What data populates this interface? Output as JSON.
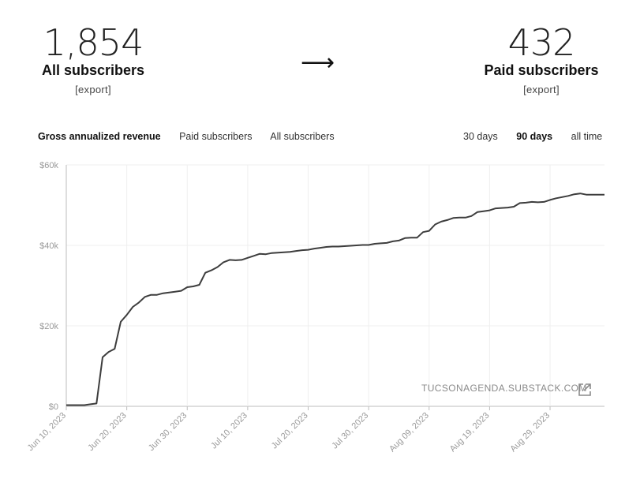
{
  "stats": {
    "all": {
      "number": "1,854",
      "label": "All subscribers",
      "export": "[export]"
    },
    "paid": {
      "number": "432",
      "label": "Paid subscribers",
      "export": "[export]"
    },
    "arrow": "⟶"
  },
  "tabs": {
    "metrics": [
      {
        "label": "Gross annualized revenue",
        "active": true
      },
      {
        "label": "Paid subscribers",
        "active": false
      },
      {
        "label": "All subscribers",
        "active": false
      }
    ],
    "ranges": [
      {
        "label": "30 days",
        "active": false
      },
      {
        "label": "90 days",
        "active": true
      },
      {
        "label": "all time",
        "active": false
      }
    ]
  },
  "watermark": {
    "text": "TUCSONAGENDA.SUBSTACK.COM",
    "icon": "external-link-icon"
  },
  "colors": {
    "line": "#3d3d3d",
    "grid": "#efefef",
    "axis": "#bdbdbd",
    "tick_text": "#9a9a9a"
  },
  "chart_data": {
    "type": "line",
    "title": "",
    "xlabel": "",
    "ylabel": "",
    "ylim": [
      0,
      60000
    ],
    "yticks": [
      0,
      20000,
      40000,
      60000
    ],
    "ytick_labels": [
      "$0",
      "$20k",
      "$40k",
      "$60k"
    ],
    "xlim": [
      "2023-06-10",
      "2023-09-07"
    ],
    "xticks": [
      "2023-06-10",
      "2023-06-20",
      "2023-06-30",
      "2023-07-10",
      "2023-07-20",
      "2023-07-30",
      "2023-08-09",
      "2023-08-19",
      "2023-08-29"
    ],
    "xtick_labels": [
      "Jun 10, 2023",
      "Jun 20, 2023",
      "Jun 30, 2023",
      "Jul 10, 2023",
      "Jul 20, 2023",
      "Jul 30, 2023",
      "Aug 09, 2023",
      "Aug 19, 2023",
      "Aug 29, 2023"
    ],
    "grid": true,
    "series": [
      {
        "x": [
          "2023-06-10",
          "2023-06-11",
          "2023-06-12",
          "2023-06-13",
          "2023-06-14",
          "2023-06-15",
          "2023-06-16",
          "2023-06-17",
          "2023-06-18",
          "2023-06-19",
          "2023-06-20",
          "2023-06-21",
          "2023-06-22",
          "2023-06-23",
          "2023-06-24",
          "2023-06-25",
          "2023-06-26",
          "2023-06-27",
          "2023-06-28",
          "2023-06-29",
          "2023-06-30",
          "2023-07-01",
          "2023-07-02",
          "2023-07-03",
          "2023-07-04",
          "2023-07-05",
          "2023-07-06",
          "2023-07-07",
          "2023-07-08",
          "2023-07-09",
          "2023-07-10",
          "2023-07-11",
          "2023-07-12",
          "2023-07-13",
          "2023-07-14",
          "2023-07-15",
          "2023-07-16",
          "2023-07-17",
          "2023-07-18",
          "2023-07-19",
          "2023-07-20",
          "2023-07-21",
          "2023-07-22",
          "2023-07-23",
          "2023-07-24",
          "2023-07-25",
          "2023-07-26",
          "2023-07-27",
          "2023-07-28",
          "2023-07-29",
          "2023-07-30",
          "2023-07-31",
          "2023-08-01",
          "2023-08-02",
          "2023-08-03",
          "2023-08-04",
          "2023-08-05",
          "2023-08-06",
          "2023-08-07",
          "2023-08-08",
          "2023-08-09",
          "2023-08-10",
          "2023-08-11",
          "2023-08-12",
          "2023-08-13",
          "2023-08-14",
          "2023-08-15",
          "2023-08-16",
          "2023-08-17",
          "2023-08-18",
          "2023-08-19",
          "2023-08-20",
          "2023-08-21",
          "2023-08-22",
          "2023-08-23",
          "2023-08-24",
          "2023-08-25",
          "2023-08-26",
          "2023-08-27",
          "2023-08-28",
          "2023-08-29",
          "2023-08-30",
          "2023-08-31",
          "2023-09-01",
          "2023-09-02",
          "2023-09-03",
          "2023-09-04",
          "2023-09-05",
          "2023-09-06",
          "2023-09-07"
        ],
        "values": [
          300,
          300,
          300,
          300,
          500,
          700,
          12200,
          13500,
          14300,
          21000,
          22700,
          24700,
          25800,
          27200,
          27700,
          27700,
          28100,
          28300,
          28500,
          28700,
          29600,
          29800,
          30200,
          33200,
          33800,
          34600,
          35800,
          36400,
          36300,
          36400,
          36900,
          37400,
          37900,
          37800,
          38100,
          38200,
          38300,
          38400,
          38600,
          38800,
          38900,
          39200,
          39400,
          39600,
          39700,
          39700,
          39800,
          39900,
          40000,
          40100,
          40100,
          40400,
          40500,
          40600,
          41000,
          41200,
          41800,
          41900,
          41900,
          43300,
          43600,
          45200,
          45900,
          46300,
          46800,
          46900,
          46900,
          47300,
          48300,
          48500,
          48700,
          49200,
          49300,
          49400,
          49600,
          50500,
          50600,
          50800,
          50700,
          50800,
          51300,
          51700,
          52000,
          52300,
          52700,
          52900,
          52600,
          52600,
          52600,
          52600
        ]
      }
    ]
  }
}
